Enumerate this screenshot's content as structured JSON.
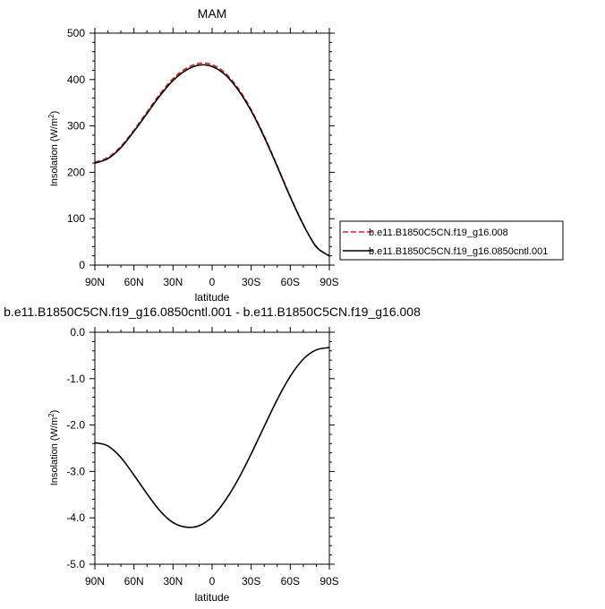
{
  "chart_data": [
    {
      "type": "line",
      "title": "MAM",
      "xlabel": "latitude",
      "ylabel": "Insolation (W/m²)",
      "xlim": [
        90,
        -90
      ],
      "ylim": [
        0,
        500
      ],
      "grid": false,
      "legend_placement": "right",
      "x_ticks": [
        {
          "value": 90,
          "label": "90N"
        },
        {
          "value": 60,
          "label": "60N"
        },
        {
          "value": 30,
          "label": "30N"
        },
        {
          "value": 0,
          "label": "0"
        },
        {
          "value": -30,
          "label": "30S"
        },
        {
          "value": -60,
          "label": "60S"
        },
        {
          "value": -90,
          "label": "90S"
        }
      ],
      "y_ticks": [
        {
          "value": 0,
          "label": "0"
        },
        {
          "value": 100,
          "label": "100"
        },
        {
          "value": 200,
          "label": "200"
        },
        {
          "value": 300,
          "label": "300"
        },
        {
          "value": 400,
          "label": "400"
        },
        {
          "value": 500,
          "label": "500"
        }
      ],
      "x": [
        90,
        80,
        70,
        60,
        50,
        40,
        30,
        20,
        10,
        0,
        -10,
        -20,
        -30,
        -40,
        -50,
        -60,
        -70,
        -80,
        -90
      ],
      "series": [
        {
          "name": "b.e11.B1850C5CN.f19_g16.008",
          "color": "#d62020",
          "dash": true,
          "values": [
            222,
            232,
            256,
            291,
            330,
            369,
            402,
            424,
            435,
            432,
            414,
            381,
            335,
            278,
            214,
            148,
            88,
            40,
            20
          ]
        },
        {
          "name": "b.e11.B1850C5CN.f19_g16.0850cntl.001",
          "color": "#000000",
          "dash": false,
          "values": [
            219.6,
            229.6,
            253.3,
            288.4,
            326.7,
            365.2,
            397.9,
            420.0,
            431.0,
            428.2,
            410.5,
            377.6,
            332.3,
            276.0,
            212.3,
            146.9,
            87.1,
            39.4,
            19.7
          ]
        }
      ]
    },
    {
      "type": "line",
      "title": "b.e11.B1850C5CN.f19_g16.0850cntl.001 - b.e11.B1850C5CN.f19_g16.008",
      "xlabel": "latitude",
      "ylabel": "Insolation (W/m²)",
      "xlim": [
        90,
        -90
      ],
      "ylim": [
        -5.0,
        0.0
      ],
      "grid": false,
      "x_ticks": [
        {
          "value": 90,
          "label": "90N"
        },
        {
          "value": 60,
          "label": "60N"
        },
        {
          "value": 30,
          "label": "30N"
        },
        {
          "value": 0,
          "label": "0"
        },
        {
          "value": -30,
          "label": "30S"
        },
        {
          "value": -60,
          "label": "60S"
        },
        {
          "value": -90,
          "label": "90S"
        }
      ],
      "y_ticks": [
        {
          "value": 0.0,
          "label": "0.0"
        },
        {
          "value": -1.0,
          "label": "-1.0"
        },
        {
          "value": -2.0,
          "label": "-2.0"
        },
        {
          "value": -3.0,
          "label": "-3.0"
        },
        {
          "value": -4.0,
          "label": "-4.0"
        },
        {
          "value": -5.0,
          "label": "-5.0"
        }
      ],
      "x": [
        90,
        80,
        70,
        60,
        50,
        40,
        30,
        20,
        10,
        0,
        -10,
        -20,
        -30,
        -40,
        -50,
        -60,
        -70,
        -80,
        -90
      ],
      "series": [
        {
          "color": "#000000",
          "values": [
            -2.38,
            -2.45,
            -2.7,
            -3.08,
            -3.48,
            -3.85,
            -4.1,
            -4.2,
            -4.17,
            -3.98,
            -3.63,
            -3.17,
            -2.62,
            -2.03,
            -1.45,
            -0.95,
            -0.58,
            -0.38,
            -0.33
          ]
        }
      ]
    }
  ]
}
